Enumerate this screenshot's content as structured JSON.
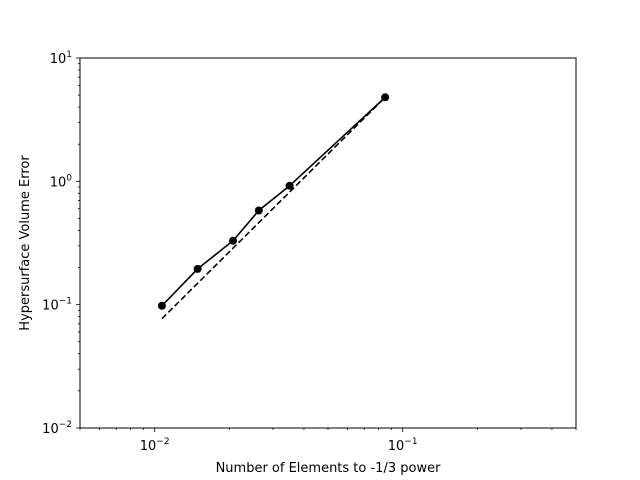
{
  "chart_data": {
    "type": "line",
    "title": "",
    "xlabel": "Number of Elements to -1/3 power",
    "ylabel": "Hypersurface Volume Error",
    "xscale": "log",
    "yscale": "log",
    "xlim": [
      0.005,
      0.5
    ],
    "ylim": [
      0.01,
      10
    ],
    "x_major_ticks": [
      {
        "value": 0.01,
        "base": "10",
        "exp": "−2"
      },
      {
        "value": 0.1,
        "base": "10",
        "exp": "−1"
      }
    ],
    "y_major_ticks": [
      {
        "value": 0.01,
        "base": "10",
        "exp": "−2"
      },
      {
        "value": 0.1,
        "base": "10",
        "exp": "−1"
      },
      {
        "value": 1,
        "base": "10",
        "exp": "0"
      },
      {
        "value": 10,
        "base": "10",
        "exp": "1"
      }
    ],
    "grid": false,
    "legend": "none",
    "series": [
      {
        "style": "solid",
        "marker": "circle",
        "color": "#000000",
        "x": [
          0.0107,
          0.0149,
          0.0207,
          0.0263,
          0.035,
          0.085
        ],
        "y": [
          0.098,
          0.195,
          0.33,
          0.58,
          0.92,
          4.8
        ]
      },
      {
        "style": "dashed",
        "marker": "none",
        "color": "#000000",
        "x": [
          0.0107,
          0.085
        ],
        "y": [
          0.077,
          4.8
        ]
      }
    ]
  }
}
